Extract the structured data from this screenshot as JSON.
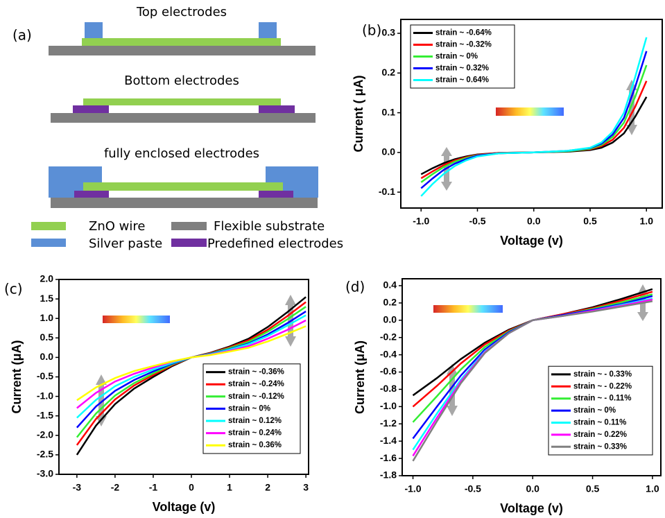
{
  "diagram": {
    "label": "(a)",
    "titles": [
      "Top electrodes",
      "Bottom electrodes",
      "fully enclosed electrodes"
    ],
    "legend": [
      "ZnO wire",
      "Silver paste",
      "Flexible substrate",
      "Predefined electrodes"
    ]
  },
  "chart_data": [
    {
      "type": "line",
      "panel_label": "(b)",
      "xlabel": "Voltage (v)",
      "ylabel": "Current ( μA)",
      "legend": "upper left",
      "xlim": [
        -1.18,
        1.14
      ],
      "ylim": [
        -0.14,
        0.335
      ],
      "xticks": [
        {
          "value": -1,
          "label": "-1.0"
        },
        -0.5,
        {
          "value": 0,
          "label": "0.0"
        },
        0.5,
        {
          "value": 1,
          "label": "1.0"
        }
      ],
      "yticks": [
        -0.1,
        {
          "value": 0,
          "label": "0.0"
        },
        0.1,
        0.2,
        0.3
      ],
      "x": [
        -1,
        -0.9,
        -0.8,
        -0.7,
        -0.6,
        -0.5,
        -0.3,
        0,
        0.3,
        0.5,
        0.6,
        0.7,
        0.8,
        0.9,
        1
      ],
      "series": [
        {
          "name": "strain ~ -0.64%",
          "color": "#000000",
          "values": [
            -0.055,
            -0.04,
            -0.027,
            -0.017,
            -0.01,
            -0.005,
            -0.001,
            0,
            0.002,
            0.006,
            0.012,
            0.025,
            0.048,
            0.09,
            0.14
          ]
        },
        {
          "name": "strain ~ -0.32%",
          "color": "#ff0000",
          "values": [
            -0.065,
            -0.048,
            -0.032,
            -0.02,
            -0.012,
            -0.006,
            -0.001,
            0,
            0.003,
            0.008,
            0.016,
            0.032,
            0.062,
            0.115,
            0.18
          ]
        },
        {
          "name": "strain ~ 0%",
          "color": "#33ee33",
          "values": [
            -0.075,
            -0.055,
            -0.037,
            -0.023,
            -0.014,
            -0.007,
            -0.002,
            0,
            0.003,
            0.009,
            0.019,
            0.039,
            0.075,
            0.14,
            0.22
          ]
        },
        {
          "name": "strain ~ 0.32%",
          "color": "#0000ff",
          "values": [
            -0.09,
            -0.066,
            -0.044,
            -0.028,
            -0.017,
            -0.008,
            -0.002,
            0,
            0.004,
            0.011,
            0.022,
            0.045,
            0.087,
            0.165,
            0.255
          ]
        },
        {
          "name": "strain ~ 0.64%",
          "color": "#00ffff",
          "values": [
            -0.11,
            -0.08,
            -0.054,
            -0.034,
            -0.02,
            -0.01,
            -0.002,
            0,
            0.004,
            0.012,
            0.025,
            0.052,
            0.1,
            0.19,
            0.29
          ]
        }
      ]
    },
    {
      "type": "line",
      "panel_label": "(c)",
      "xlabel": "Voltage (v)",
      "ylabel": "Current (μA)",
      "legend": "lower right",
      "xlim": [
        -3.47,
        3.07
      ],
      "ylim": [
        -3,
        2
      ],
      "xticks": [
        -3,
        -2,
        -1,
        0,
        1,
        2,
        3
      ],
      "yticks": [
        {
          "value": -3,
          "label": "-3.0"
        },
        -2.5,
        {
          "value": -2,
          "label": "-2.0"
        },
        -1.5,
        {
          "value": -1,
          "label": "-1.0"
        },
        -0.5,
        {
          "value": 0,
          "label": "0.0"
        },
        0.5,
        {
          "value": 1,
          "label": "1.0"
        },
        1.5,
        {
          "value": 2,
          "label": "2.0"
        }
      ],
      "x": [
        -3,
        -2.5,
        -2,
        -1.5,
        -1,
        -0.5,
        0,
        0.5,
        1,
        1.5,
        2,
        2.5,
        3
      ],
      "series": [
        {
          "name": "strain ~ -0.36%",
          "color": "#000000",
          "values": [
            -2.5,
            -1.75,
            -1.2,
            -0.8,
            -0.5,
            -0.22,
            0,
            0.12,
            0.28,
            0.48,
            0.78,
            1.15,
            1.55
          ]
        },
        {
          "name": "strain ~ -0.24%",
          "color": "#ff0000",
          "values": [
            -2.25,
            -1.58,
            -1.08,
            -0.72,
            -0.45,
            -0.2,
            0,
            0.11,
            0.26,
            0.44,
            0.71,
            1.05,
            1.42
          ]
        },
        {
          "name": "strain ~ -0.12%",
          "color": "#33ee33",
          "values": [
            -2.05,
            -1.44,
            -0.98,
            -0.66,
            -0.41,
            -0.18,
            0,
            0.1,
            0.24,
            0.4,
            0.66,
            0.97,
            1.3
          ]
        },
        {
          "name": "strain ~ 0%",
          "color": "#0000ff",
          "values": [
            -1.8,
            -1.26,
            -0.86,
            -0.58,
            -0.36,
            -0.16,
            0,
            0.09,
            0.21,
            0.36,
            0.59,
            0.87,
            1.18
          ]
        },
        {
          "name": "strain ~ 0.12%",
          "color": "#00ffff",
          "values": [
            -1.55,
            -1.09,
            -0.74,
            -0.5,
            -0.31,
            -0.14,
            0,
            0.08,
            0.2,
            0.34,
            0.55,
            0.81,
            1.08
          ]
        },
        {
          "name": "strain ~ 0.24%",
          "color": "#ff00ff",
          "values": [
            -1.3,
            -0.91,
            -0.62,
            -0.42,
            -0.26,
            -0.11,
            0,
            0.07,
            0.17,
            0.29,
            0.48,
            0.7,
            0.95
          ]
        },
        {
          "name": "strain ~ 0.36%",
          "color": "#ffff00",
          "values": [
            -1.1,
            -0.77,
            -0.53,
            -0.35,
            -0.22,
            -0.1,
            0,
            0.06,
            0.15,
            0.25,
            0.41,
            0.6,
            0.8
          ]
        }
      ]
    },
    {
      "type": "line",
      "panel_label": "(d)",
      "xlabel": "Voltage (v)",
      "ylabel": "Current (μA)",
      "legend": "lower right",
      "xlim": [
        -1.09,
        1.07
      ],
      "ylim": [
        -1.8,
        0.48
      ],
      "xticks": [
        {
          "value": -1,
          "label": "-1.0"
        },
        -0.5,
        {
          "value": 0,
          "label": "0.0"
        },
        0.5,
        {
          "value": 1,
          "label": "1.0"
        }
      ],
      "yticks": [
        -1.8,
        -1.6,
        -1.4,
        -1.2,
        {
          "value": -1,
          "label": "-1.0"
        },
        -0.8,
        -0.6,
        -0.4,
        -0.2,
        {
          "value": 0,
          "label": "0.0"
        },
        0.2,
        0.4
      ],
      "x": [
        -1,
        -0.8,
        -0.6,
        -0.4,
        -0.2,
        0,
        0.25,
        0.5,
        0.75,
        1
      ],
      "series": [
        {
          "name": "strain ~ - 0.33%",
          "color": "#000000",
          "values": [
            -0.87,
            -0.67,
            -0.45,
            -0.26,
            -0.11,
            0,
            0.07,
            0.15,
            0.25,
            0.36
          ]
        },
        {
          "name": "strain ~ - 0.22%",
          "color": "#ff0000",
          "values": [
            -1.0,
            -0.76,
            -0.5,
            -0.28,
            -0.12,
            0,
            0.07,
            0.14,
            0.23,
            0.33
          ]
        },
        {
          "name": "strain ~ - 0.11%",
          "color": "#33ee33",
          "values": [
            -1.18,
            -0.88,
            -0.57,
            -0.31,
            -0.13,
            0,
            0.06,
            0.13,
            0.21,
            0.3
          ]
        },
        {
          "name": "strain ~ 0%",
          "color": "#0000ff",
          "values": [
            -1.37,
            -1.0,
            -0.64,
            -0.34,
            -0.14,
            0,
            0.06,
            0.12,
            0.19,
            0.28
          ]
        },
        {
          "name": "strain ~ 0.11%",
          "color": "#00ffff",
          "values": [
            -1.5,
            -1.08,
            -0.69,
            -0.36,
            -0.15,
            0,
            0.05,
            0.11,
            0.18,
            0.25
          ]
        },
        {
          "name": "strain ~ 0.22%",
          "color": "#ff00ff",
          "values": [
            -1.57,
            -1.13,
            -0.71,
            -0.37,
            -0.15,
            0,
            0.05,
            0.11,
            0.17,
            0.24
          ]
        },
        {
          "name": "strain ~ 0.33%",
          "color": "#808080",
          "values": [
            -1.63,
            -1.17,
            -0.73,
            -0.38,
            -0.15,
            0,
            0.05,
            0.1,
            0.16,
            0.22
          ]
        }
      ]
    }
  ]
}
